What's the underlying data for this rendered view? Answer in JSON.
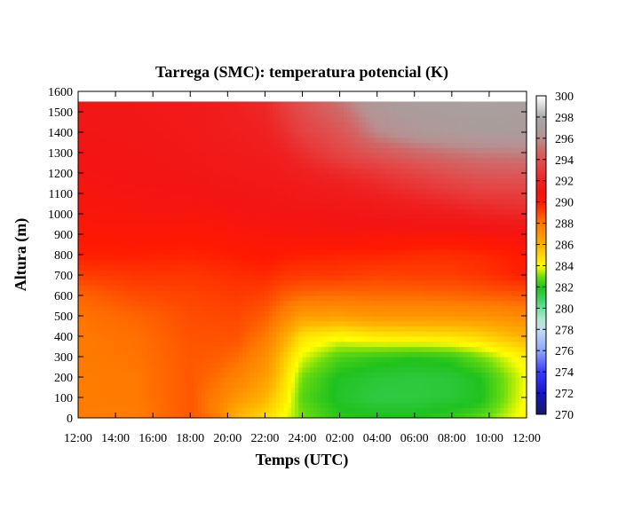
{
  "chart_data": {
    "type": "heatmap",
    "title": "Tarrega (SMC): temperatura potencial (K)",
    "xlabel": "Temps (UTC)",
    "ylabel": "Altura (m)",
    "x_ticks": [
      "12:00",
      "14:00",
      "16:00",
      "18:00",
      "20:00",
      "22:00",
      "24:00",
      "02:00",
      "04:00",
      "06:00",
      "08:00",
      "10:00",
      "12:00"
    ],
    "x_range_hours": [
      0,
      24
    ],
    "y_ticks": [
      0,
      100,
      200,
      300,
      400,
      500,
      600,
      700,
      800,
      900,
      1000,
      1100,
      1200,
      1300,
      1400,
      1500,
      1600
    ],
    "ylim": [
      0,
      1600
    ],
    "data_top_height": 1550,
    "colorbar": {
      "min": 270,
      "max": 300,
      "ticks": [
        270,
        272,
        274,
        276,
        278,
        280,
        282,
        284,
        286,
        288,
        290,
        292,
        294,
        296,
        298,
        300
      ],
      "colors": [
        [
          270,
          "#1a1a5a"
        ],
        [
          272,
          "#1414c8"
        ],
        [
          274,
          "#3a3aff"
        ],
        [
          276,
          "#8ca4ff"
        ],
        [
          278,
          "#c4dcf0"
        ],
        [
          279,
          "#b0e8d0"
        ],
        [
          280,
          "#6ee0a0"
        ],
        [
          281,
          "#3ccf5a"
        ],
        [
          282,
          "#1ec21e"
        ],
        [
          283,
          "#6cdc10"
        ],
        [
          284,
          "#ffff00"
        ],
        [
          285,
          "#ffd800"
        ],
        [
          286,
          "#ffb000"
        ],
        [
          287,
          "#ff9400"
        ],
        [
          288,
          "#ff7a00"
        ],
        [
          289,
          "#ff4800"
        ],
        [
          290,
          "#ff1a00"
        ],
        [
          291,
          "#f31414"
        ],
        [
          292,
          "#ef2020"
        ],
        [
          293,
          "#e83a3a"
        ],
        [
          294,
          "#e05050"
        ],
        [
          295,
          "#d06868"
        ],
        [
          296,
          "#b89090"
        ],
        [
          297,
          "#ab9c9c"
        ],
        [
          298,
          "#a8a8a8"
        ],
        [
          300,
          "#ffffff"
        ]
      ]
    },
    "profile_heights_m": [
      0,
      50,
      100,
      200,
      300,
      400,
      500,
      600,
      700,
      800,
      900,
      1000,
      1100,
      1200,
      1300,
      1400,
      1550
    ],
    "profiles": [
      {
        "t": 0,
        "theta": [
          287.8,
          287.9,
          287.9,
          287.9,
          288.0,
          288.0,
          288.1,
          288.4,
          289.2,
          289.9,
          290.2,
          290.5,
          290.7,
          290.8,
          291.0,
          291.1,
          291.2
        ]
      },
      {
        "t": 3,
        "theta": [
          287.9,
          287.9,
          288.0,
          288.0,
          288.1,
          288.2,
          288.4,
          288.9,
          289.4,
          289.9,
          290.3,
          290.6,
          290.8,
          291.0,
          291.1,
          291.2,
          291.3
        ]
      },
      {
        "t": 6,
        "theta": [
          288.7,
          288.7,
          288.7,
          288.7,
          288.7,
          288.8,
          288.9,
          289.1,
          289.4,
          289.8,
          290.2,
          290.6,
          290.9,
          291.1,
          291.3,
          291.4,
          291.5
        ]
      },
      {
        "t": 7.5,
        "theta": [
          288.0,
          287.6,
          287.8,
          288.2,
          288.6,
          288.8,
          289.0,
          289.2,
          289.5,
          289.9,
          290.3,
          290.7,
          291.0,
          291.3,
          291.5,
          291.7,
          291.8
        ]
      },
      {
        "t": 8.5,
        "theta": [
          285.8,
          286.3,
          287.0,
          287.7,
          288.3,
          288.8,
          289.0,
          289.3,
          289.6,
          290.0,
          290.4,
          290.8,
          291.1,
          291.4,
          291.6,
          291.8,
          292.0
        ]
      },
      {
        "t": 10,
        "theta": [
          285.0,
          285.4,
          285.9,
          286.7,
          287.3,
          288.0,
          288.6,
          289.1,
          289.7,
          290.1,
          290.5,
          290.9,
          291.2,
          291.5,
          291.8,
          292.0,
          292.3
        ]
      },
      {
        "t": 11,
        "theta": [
          284.0,
          284.3,
          284.6,
          285.0,
          285.4,
          286.4,
          287.7,
          288.6,
          289.4,
          290.0,
          290.6,
          291.0,
          291.3,
          291.7,
          292.0,
          292.5,
          293.2
        ]
      },
      {
        "t": 12,
        "theta": [
          283.0,
          282.9,
          282.7,
          283.0,
          283.8,
          284.7,
          286.6,
          288.3,
          289.3,
          289.9,
          290.6,
          291.0,
          291.5,
          291.9,
          292.5,
          293.3,
          294.0
        ]
      },
      {
        "t": 14,
        "theta": [
          282.2,
          282.0,
          281.8,
          281.9,
          282.6,
          284.1,
          286.6,
          288.2,
          289.3,
          289.8,
          290.6,
          291.1,
          291.7,
          292.3,
          293.5,
          294.2,
          295.3
        ]
      },
      {
        "t": 16,
        "theta": [
          282.1,
          281.7,
          281.4,
          281.6,
          282.3,
          284.5,
          286.9,
          288.3,
          289.1,
          289.8,
          290.5,
          291.3,
          292.0,
          292.8,
          294.3,
          295.8,
          296.8
        ]
      },
      {
        "t": 18,
        "theta": [
          282.1,
          281.8,
          281.4,
          281.5,
          282.1,
          284.6,
          286.9,
          288.3,
          289.2,
          289.6,
          290.5,
          291.5,
          292.4,
          293.4,
          294.9,
          296.5,
          297.2
        ]
      },
      {
        "t": 20,
        "theta": [
          282.3,
          282.0,
          281.6,
          281.6,
          282.3,
          284.7,
          286.9,
          288.4,
          289.2,
          289.6,
          290.4,
          291.7,
          292.8,
          294.0,
          295.3,
          296.8,
          297.3
        ]
      },
      {
        "t": 21.5,
        "theta": [
          282.8,
          282.3,
          281.9,
          282.0,
          283.0,
          285.0,
          287.0,
          288.5,
          289.4,
          289.7,
          290.5,
          292.0,
          293.1,
          294.3,
          295.5,
          296.9,
          297.4
        ]
      },
      {
        "t": 24,
        "theta": [
          284.3,
          284.2,
          284.1,
          284.0,
          284.4,
          286.0,
          287.4,
          288.7,
          289.9,
          290.0,
          290.8,
          292.3,
          293.2,
          294.4,
          295.6,
          296.9,
          297.2
        ]
      }
    ]
  }
}
